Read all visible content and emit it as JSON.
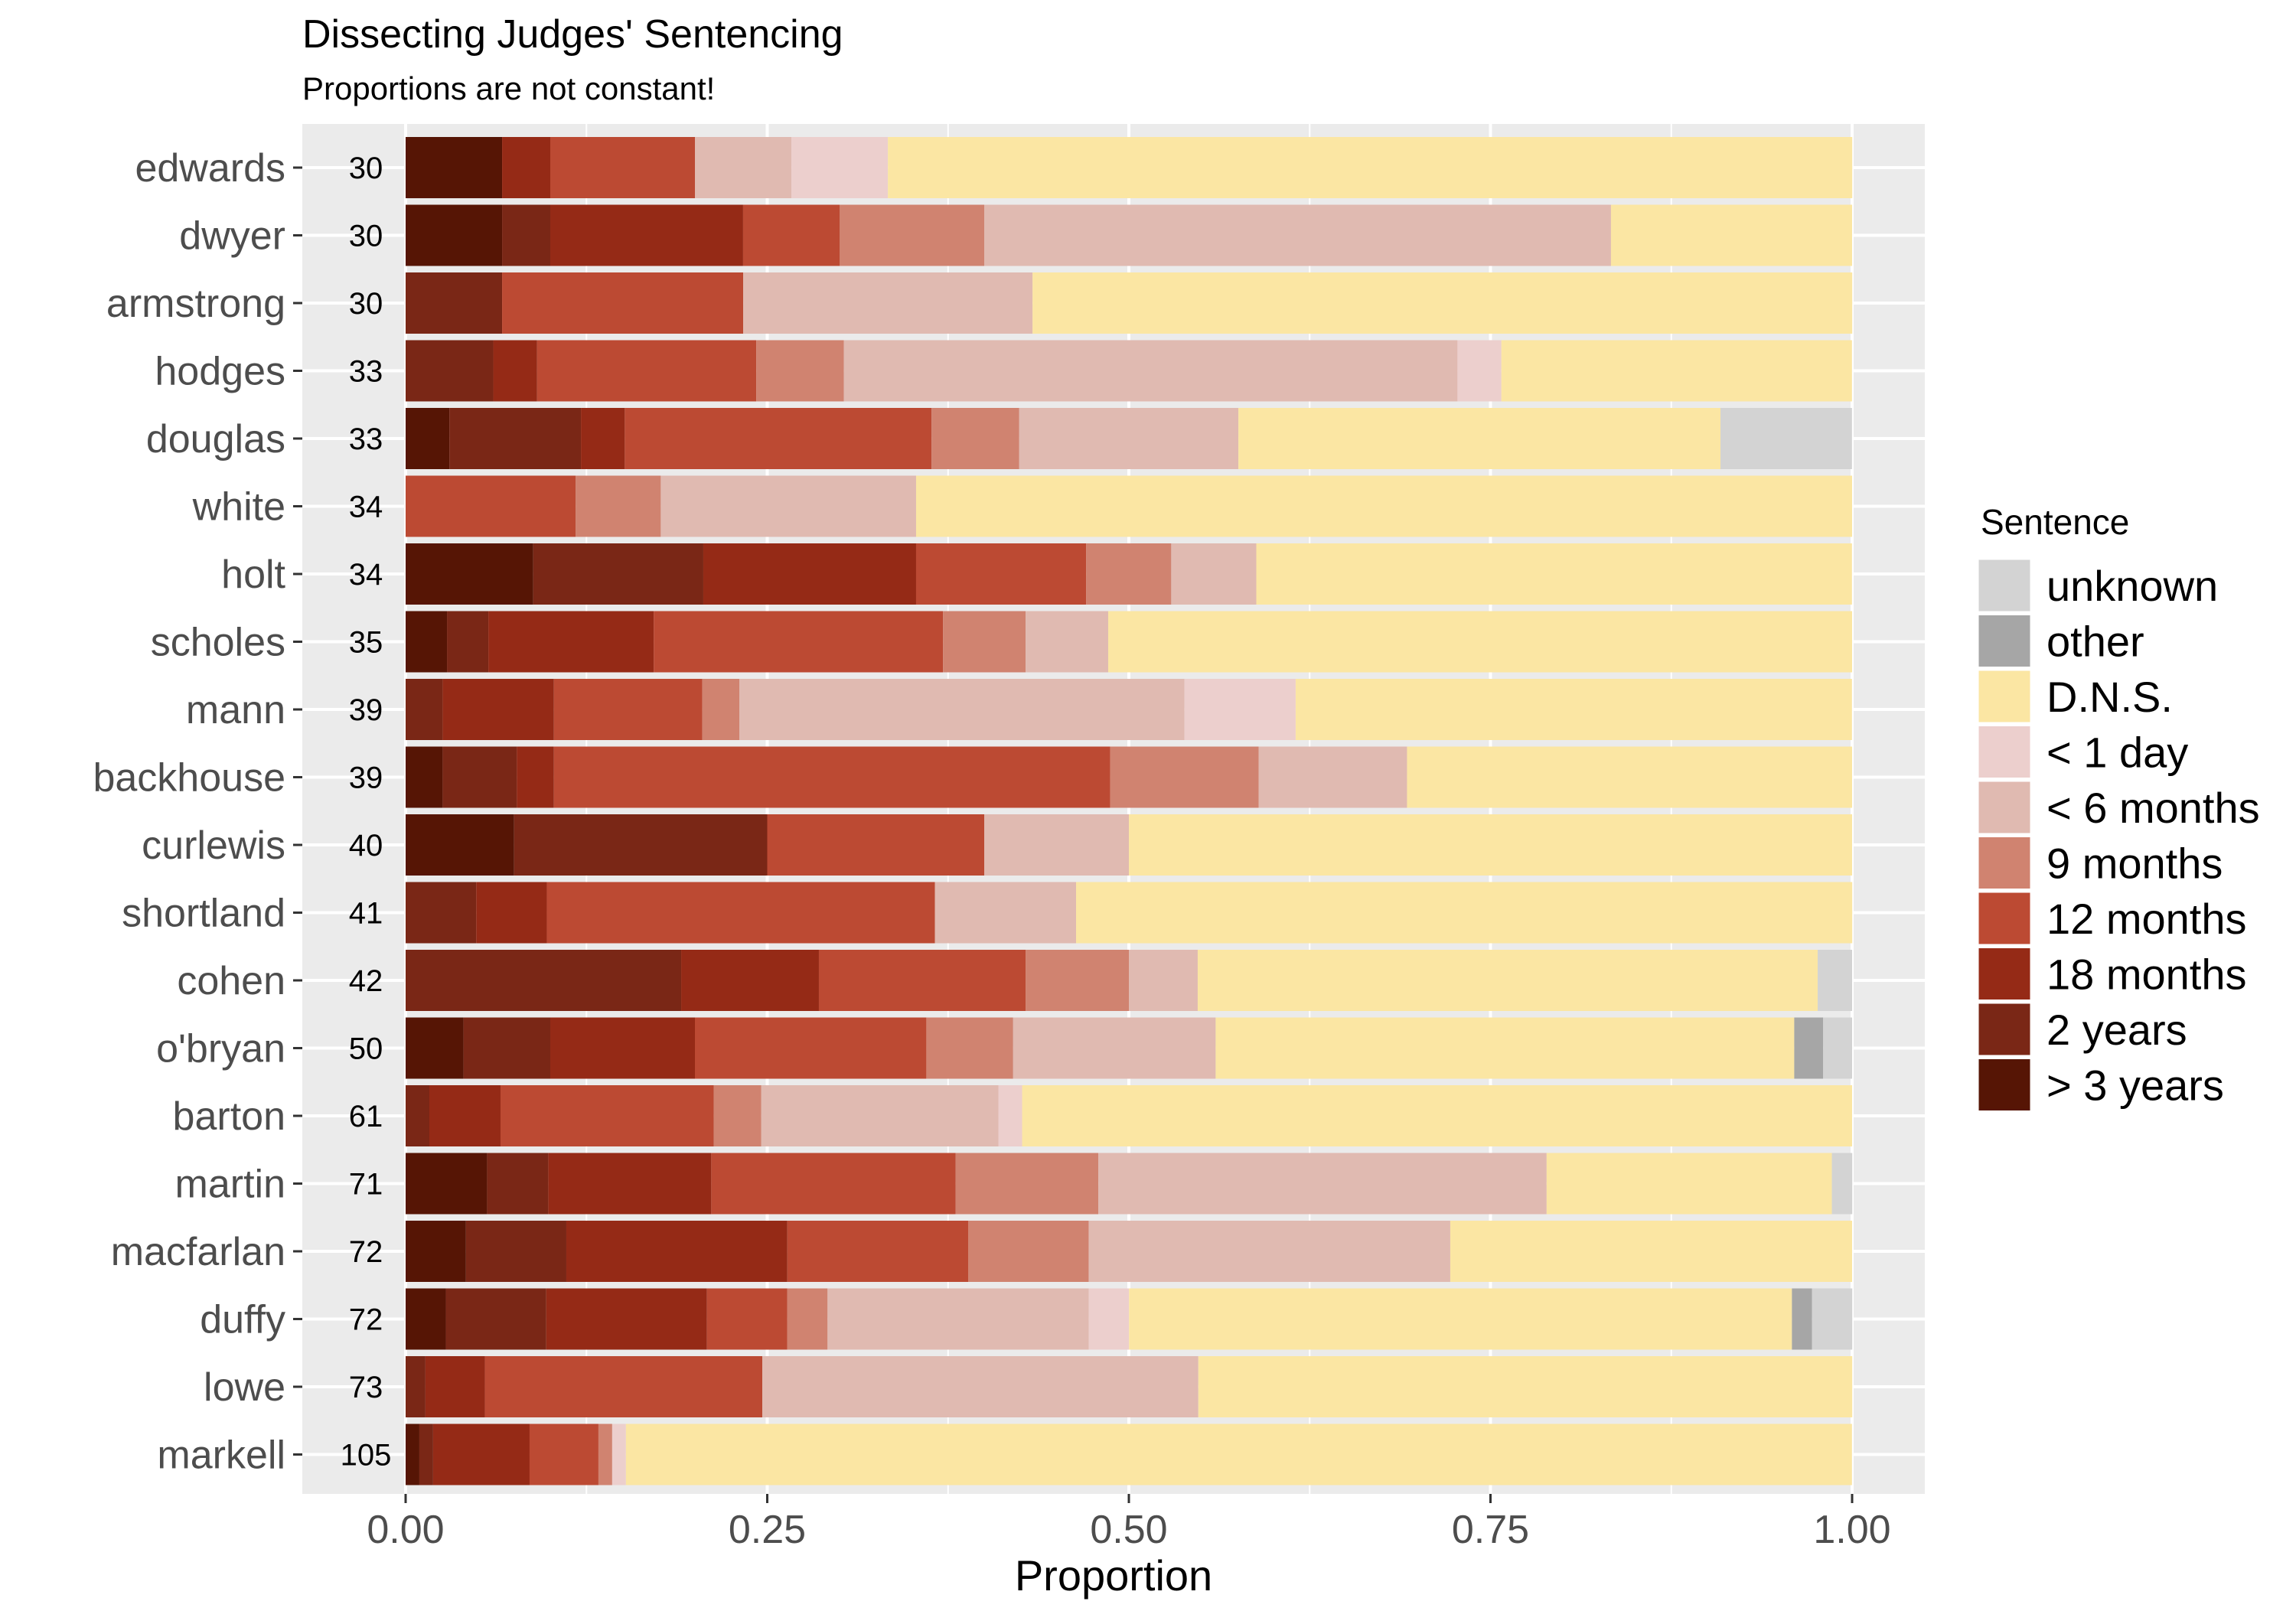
{
  "chart_data": {
    "type": "bar",
    "orientation": "horizontal",
    "stacked": true,
    "title": "Dissecting Judges' Sentencing",
    "subtitle": "Proportions are not constant!",
    "xlabel": "Proportion",
    "ylabel": "",
    "xlim": [
      0,
      1
    ],
    "x_ticks": [
      "0.00",
      "0.25",
      "0.50",
      "0.75",
      "1.00"
    ],
    "x_tick_values": [
      0,
      0.25,
      0.5,
      0.75,
      1
    ],
    "grid": true,
    "legend_position": "right",
    "legend_title": "Sentence",
    "categories": [
      "edwards",
      "dwyer",
      "armstrong",
      "hodges",
      "douglas",
      "white",
      "holt",
      "scholes",
      "mann",
      "backhouse",
      "curlewis",
      "shortland",
      "cohen",
      "o'bryan",
      "barton",
      "martin",
      "macfarlan",
      "duffy",
      "lowe",
      "markell"
    ],
    "counts": [
      "30",
      "30",
      "30",
      "33",
      "33",
      "34",
      "34",
      "35",
      "39",
      "39",
      "40",
      "41",
      "42",
      "50",
      "61",
      "71",
      "72",
      "72",
      "73",
      "105"
    ],
    "series": [
      {
        "name": "> 3 years",
        "color": "#561505",
        "values": [
          0.0667,
          0.0667,
          0,
          0,
          0.0303,
          0,
          0.0882,
          0.0286,
          0,
          0.0256,
          0.075,
          0,
          0,
          0.04,
          0,
          0.0563,
          0.0417,
          0.0278,
          0,
          0.0095
        ]
      },
      {
        "name": "2 years",
        "color": "#7A2716",
        "values": [
          0,
          0.0333,
          0.0667,
          0.0606,
          0.0909,
          0,
          0.1176,
          0.0286,
          0.0256,
          0.0513,
          0.175,
          0.0488,
          0.1905,
          0.06,
          0.0164,
          0.0423,
          0.0694,
          0.0694,
          0.0137,
          0.0095
        ]
      },
      {
        "name": "18 months",
        "color": "#952A16",
        "values": [
          0.0333,
          0.1333,
          0,
          0.0303,
          0.0303,
          0,
          0.1471,
          0.1143,
          0.0769,
          0.0256,
          0,
          0.0488,
          0.0952,
          0.1,
          0.0492,
          0.1127,
          0.1528,
          0.1111,
          0.0411,
          0.0667
        ]
      },
      {
        "name": "12 months",
        "color": "#BC4A33",
        "values": [
          0.1,
          0.0667,
          0.1667,
          0.1515,
          0.2121,
          0.1176,
          0.1176,
          0.2,
          0.1026,
          0.3846,
          0.15,
          0.2683,
          0.1429,
          0.16,
          0.1475,
          0.169,
          0.125,
          0.0556,
          0.1918,
          0.0476
        ]
      },
      {
        "name": "9 months",
        "color": "#D08370",
        "values": [
          0,
          0.1,
          0,
          0.0606,
          0.0606,
          0.0588,
          0.0588,
          0.0571,
          0.0256,
          0.1026,
          0,
          0,
          0.0714,
          0.06,
          0.0328,
          0.0986,
          0.0833,
          0.0278,
          0,
          0.0095
        ]
      },
      {
        "name": "< 6 months",
        "color": "#E0BAB1",
        "values": [
          0.0667,
          0.4333,
          0.2,
          0.4242,
          0.1515,
          0.1765,
          0.0588,
          0.0571,
          0.3077,
          0.1026,
          0.1,
          0.0976,
          0.0476,
          0.14,
          0.1639,
          0.3099,
          0.25,
          0.1806,
          0.3014,
          0
        ]
      },
      {
        "name": "< 1 day",
        "color": "#ECCFCD",
        "values": [
          0.0667,
          0,
          0,
          0.0303,
          0,
          0,
          0,
          0,
          0.0769,
          0,
          0,
          0,
          0,
          0,
          0.0164,
          0,
          0,
          0.0278,
          0,
          0.0095
        ]
      },
      {
        "name": "D.N.S.",
        "color": "#FBE6A3",
        "values": [
          0.6667,
          0.1667,
          0.5667,
          0.2424,
          0.3333,
          0.6471,
          0.4118,
          0.5143,
          0.3846,
          0.3077,
          0.5,
          0.5366,
          0.4286,
          0.4,
          0.5738,
          0.1972,
          0.2778,
          0.4583,
          0.4521,
          0.8476
        ]
      },
      {
        "name": "other",
        "color": "#A6A6A6",
        "values": [
          0,
          0,
          0,
          0,
          0,
          0,
          0,
          0,
          0,
          0,
          0,
          0,
          0,
          0.02,
          0,
          0,
          0,
          0.0139,
          0,
          0
        ]
      },
      {
        "name": "unknown",
        "color": "#D3D3D3",
        "values": [
          0,
          0,
          0,
          0,
          0.0909,
          0,
          0,
          0,
          0,
          0,
          0,
          0,
          0.0238,
          0.02,
          0,
          0.0141,
          0,
          0.0278,
          0,
          0
        ]
      }
    ],
    "legend_order": [
      "unknown",
      "other",
      "D.N.S.",
      "< 1 day",
      "< 6 months",
      "9 months",
      "12 months",
      "18 months",
      "2 years",
      "> 3 years"
    ]
  }
}
